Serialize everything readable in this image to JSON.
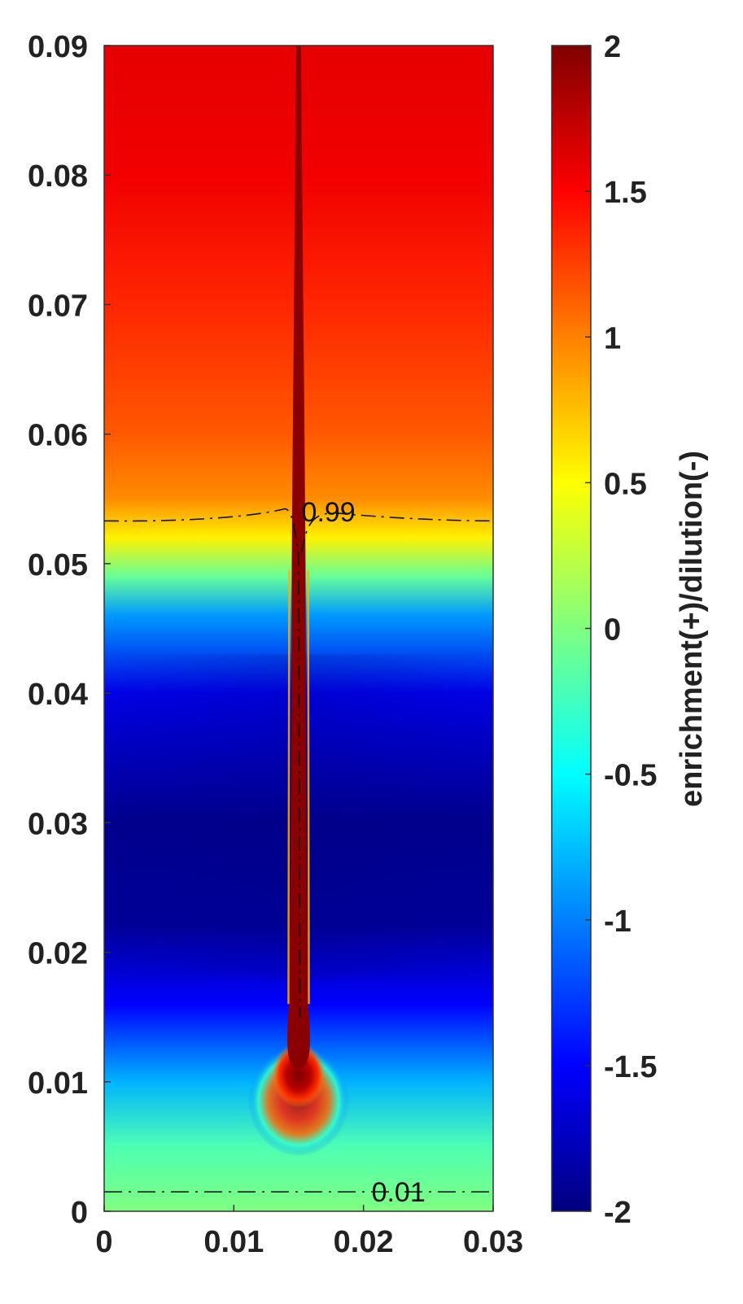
{
  "chart_data": {
    "type": "heatmap",
    "title": "",
    "xlabel": "",
    "ylabel": "",
    "xlim": [
      0,
      0.03
    ],
    "ylim": [
      0,
      0.09
    ],
    "x_ticks": [
      {
        "value": 0,
        "label": "0"
      },
      {
        "value": 0.01,
        "label": "0.01"
      },
      {
        "value": 0.02,
        "label": "0.02"
      },
      {
        "value": 0.03,
        "label": "0.03"
      }
    ],
    "y_ticks": [
      {
        "value": 0,
        "label": "0"
      },
      {
        "value": 0.01,
        "label": "0.01"
      },
      {
        "value": 0.02,
        "label": "0.02"
      },
      {
        "value": 0.03,
        "label": "0.03"
      },
      {
        "value": 0.04,
        "label": "0.04"
      },
      {
        "value": 0.05,
        "label": "0.05"
      },
      {
        "value": 0.06,
        "label": "0.06"
      },
      {
        "value": 0.07,
        "label": "0.07"
      },
      {
        "value": 0.08,
        "label": "0.08"
      },
      {
        "value": 0.09,
        "label": "0.09"
      }
    ],
    "colormap": "jet",
    "colorbar": {
      "label": "enrichment(+)/dilution(-)",
      "range": [
        -2,
        2
      ],
      "ticks": [
        {
          "value": 2,
          "label": "2"
        },
        {
          "value": 1.5,
          "label": "1.5"
        },
        {
          "value": 1,
          "label": "1"
        },
        {
          "value": 0.5,
          "label": "0.5"
        },
        {
          "value": 0,
          "label": "0"
        },
        {
          "value": -0.5,
          "label": "-0.5"
        },
        {
          "value": -1,
          "label": "-1"
        },
        {
          "value": -1.5,
          "label": "-1.5"
        },
        {
          "value": -2,
          "label": "-2"
        }
      ]
    },
    "contours": [
      {
        "label": "0.99",
        "level": 0.99,
        "y_approx": 0.0533,
        "style": "dash-dot",
        "label_x": 0.0173,
        "label_y": 0.054
      },
      {
        "label": "0.01",
        "level": 0.01,
        "y_approx": 0.0015,
        "style": "dash-dot",
        "label_x": 0.0227,
        "label_y": 0.0015
      }
    ],
    "field_profile": [
      {
        "y": 0.09,
        "value": 1.6
      },
      {
        "y": 0.08,
        "value": 1.55
      },
      {
        "y": 0.07,
        "value": 1.35
      },
      {
        "y": 0.06,
        "value": 1.15
      },
      {
        "y": 0.055,
        "value": 0.95
      },
      {
        "y": 0.052,
        "value": 0.55
      },
      {
        "y": 0.049,
        "value": -0.1
      },
      {
        "y": 0.046,
        "value": -0.9
      },
      {
        "y": 0.04,
        "value": -1.6
      },
      {
        "y": 0.03,
        "value": -1.95
      },
      {
        "y": 0.022,
        "value": -1.9
      },
      {
        "y": 0.016,
        "value": -1.5
      },
      {
        "y": 0.01,
        "value": -0.8
      },
      {
        "y": 0.005,
        "value": -0.2
      },
      {
        "y": 0.0,
        "value": 0.0
      }
    ],
    "jet": {
      "x_center": 0.015,
      "width": 0.0012,
      "y_bottom": 0.01,
      "y_top": 0.09,
      "value": 2
    }
  }
}
